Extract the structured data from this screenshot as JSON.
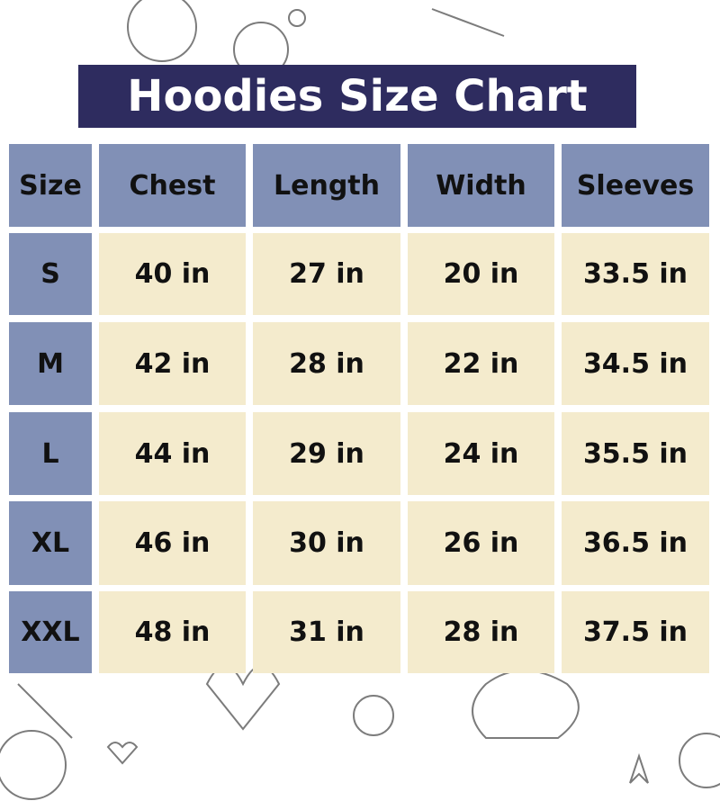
{
  "title": "Hoodies Size Chart",
  "colors": {
    "banner": "#2e2c5f",
    "header": "#8190b6",
    "cell": "#f4ebcd"
  },
  "table": {
    "headers": [
      "Size",
      "Chest",
      "Length",
      "Width",
      "Sleeves"
    ],
    "rows": [
      [
        "S",
        "40 in",
        "27 in",
        "20 in",
        "33.5 in"
      ],
      [
        "M",
        "42 in",
        "28 in",
        "22 in",
        "34.5 in"
      ],
      [
        "L",
        "44 in",
        "29 in",
        "24 in",
        "35.5 in"
      ],
      [
        "XL",
        "46 in",
        "30 in",
        "26 in",
        "36.5 in"
      ],
      [
        "XXL",
        "48 in",
        "31 in",
        "28 in",
        "37.5 in"
      ]
    ]
  }
}
